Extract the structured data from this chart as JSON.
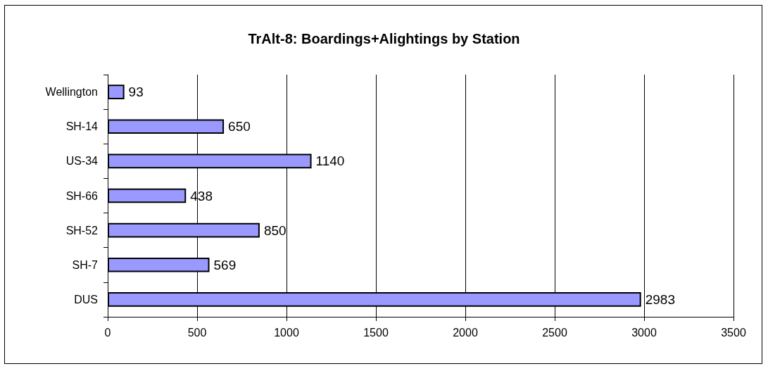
{
  "chart_data": {
    "type": "bar",
    "orientation": "horizontal",
    "title": "TrAlt-8: Boardings+Alightings by Station",
    "categories": [
      "Wellington",
      "SH-14",
      "US-34",
      "SH-66",
      "SH-52",
      "SH-7",
      "DUS"
    ],
    "values": [
      93,
      650,
      1140,
      438,
      850,
      569,
      2983
    ],
    "color": "#9999ff",
    "xlim": [
      0,
      3500
    ],
    "xticks": [
      0,
      500,
      1000,
      1500,
      2000,
      2500,
      3000,
      3500
    ],
    "grid": "x",
    "data_labels": true
  }
}
